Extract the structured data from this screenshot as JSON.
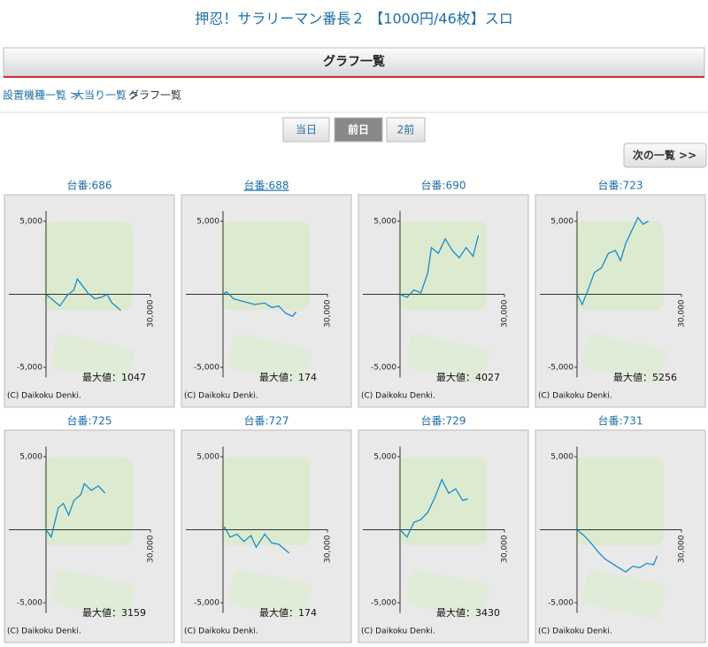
{
  "header": {
    "title": "押忍！サラリーマン番長２ 【1000円/46枚】スロ",
    "bar_title": "グラフ一覧"
  },
  "breadcrumb": [
    "設置機種一覧 >",
    "大当り一覧 >",
    "グラフ一覧"
  ],
  "tabs": [
    "当日",
    "前日",
    "2前"
  ],
  "active_tab": 1,
  "next_button": "次の一覧 >>",
  "cards": [
    {
      "label": "台番:686",
      "underline": false,
      "max_label": "最大値：1047",
      "copyright": "(C) Daikoku Denki.",
      "chart": {
        "type": "line",
        "color": "#1a8ccc",
        "xlim": [
          0,
          30000
        ],
        "ylim": [
          -6000,
          6000
        ],
        "yticks": [
          {
            "value": 5000,
            "label": "5,000"
          },
          {
            "value": -5000,
            "label": "-5,000"
          }
        ],
        "xticks": [
          {
            "value": 30000,
            "label": "30,000"
          }
        ],
        "x": [
          0,
          2000,
          4000,
          6000,
          8000,
          9000,
          12000,
          14000,
          16000,
          17500,
          19000,
          21500
        ],
        "values": [
          0,
          -400,
          -800,
          -100,
          300,
          1047,
          100,
          -300,
          -200,
          0,
          -600,
          -1100
        ]
      }
    },
    {
      "label": "台番:688",
      "underline": true,
      "max_label": "最大値：174",
      "copyright": "(C) Daikoku Denki.",
      "chart": {
        "type": "line",
        "color": "#1a8ccc",
        "xlim": [
          0,
          30000
        ],
        "ylim": [
          -6000,
          6000
        ],
        "yticks": [
          {
            "value": 5000,
            "label": "5,000"
          },
          {
            "value": -5000,
            "label": "-5,000"
          }
        ],
        "xticks": [
          {
            "value": 30000,
            "label": "30,000"
          }
        ],
        "x": [
          0,
          1000,
          3000,
          6000,
          9000,
          12000,
          14000,
          16000,
          18000,
          20000,
          21000
        ],
        "values": [
          0,
          174,
          -300,
          -500,
          -700,
          -600,
          -900,
          -800,
          -1300,
          -1500,
          -1200
        ]
      }
    },
    {
      "label": "台番:690",
      "underline": false,
      "max_label": "最大値：4027",
      "copyright": "(C) Daikoku Denki.",
      "chart": {
        "type": "line",
        "color": "#1a8ccc",
        "xlim": [
          0,
          30000
        ],
        "ylim": [
          -6000,
          6000
        ],
        "yticks": [
          {
            "value": 5000,
            "label": "5,000"
          },
          {
            "value": -5000,
            "label": "-5,000"
          }
        ],
        "xticks": [
          {
            "value": 30000,
            "label": "30,000"
          }
        ],
        "x": [
          0,
          2000,
          4000,
          6000,
          8000,
          9000,
          11000,
          13000,
          15000,
          17000,
          19000,
          21000,
          22500
        ],
        "values": [
          0,
          -200,
          300,
          100,
          1500,
          3200,
          2800,
          3800,
          3000,
          2500,
          3200,
          2600,
          4027
        ]
      }
    },
    {
      "label": "台番:723",
      "underline": false,
      "max_label": "最大値：5256",
      "copyright": "(C) Daikoku Denki.",
      "chart": {
        "type": "line",
        "color": "#1a8ccc",
        "xlim": [
          0,
          30000
        ],
        "ylim": [
          -6000,
          6000
        ],
        "yticks": [
          {
            "value": 5000,
            "label": "5,000"
          },
          {
            "value": -5000,
            "label": "-5,000"
          }
        ],
        "xticks": [
          {
            "value": 30000,
            "label": "30,000"
          }
        ],
        "x": [
          0,
          1500,
          3000,
          5000,
          7000,
          9000,
          11000,
          12500,
          14000,
          16000,
          17500,
          19000,
          20500
        ],
        "values": [
          0,
          -700,
          200,
          1500,
          1800,
          2800,
          3000,
          2300,
          3500,
          4500,
          5256,
          4800,
          5000
        ]
      }
    },
    {
      "label": "台番:725",
      "underline": false,
      "max_label": "最大値：3159",
      "copyright": "(C) Daikoku Denki.",
      "chart": {
        "type": "line",
        "color": "#1a8ccc",
        "xlim": [
          0,
          30000
        ],
        "ylim": [
          -6000,
          6000
        ],
        "yticks": [
          {
            "value": 5000,
            "label": "5,000"
          },
          {
            "value": -5000,
            "label": "-5,000"
          }
        ],
        "xticks": [
          {
            "value": 30000,
            "label": "30,000"
          }
        ],
        "x": [
          0,
          1500,
          3500,
          5000,
          6500,
          8000,
          10000,
          11000,
          13000,
          15000,
          17000
        ],
        "values": [
          0,
          -500,
          1500,
          1800,
          1000,
          2000,
          2400,
          3159,
          2700,
          3000,
          2500
        ]
      }
    },
    {
      "label": "台番:727",
      "underline": false,
      "max_label": "最大値：174",
      "copyright": "(C) Daikoku Denki.",
      "chart": {
        "type": "line",
        "color": "#1a8ccc",
        "xlim": [
          0,
          30000
        ],
        "ylim": [
          -6000,
          6000
        ],
        "yticks": [
          {
            "value": 5000,
            "label": "5,000"
          },
          {
            "value": -5000,
            "label": "-5,000"
          }
        ],
        "xticks": [
          {
            "value": 30000,
            "label": "30,000"
          }
        ],
        "x": [
          0,
          500,
          2000,
          4000,
          6000,
          8000,
          9500,
          12000,
          14000,
          16000,
          19000
        ],
        "values": [
          0,
          174,
          -500,
          -300,
          -800,
          -400,
          -1200,
          -300,
          -900,
          -1000,
          -1600
        ]
      }
    },
    {
      "label": "台番:729",
      "underline": false,
      "max_label": "最大値：3430",
      "copyright": "(C) Daikoku Denki.",
      "chart": {
        "type": "line",
        "color": "#1a8ccc",
        "xlim": [
          0,
          30000
        ],
        "ylim": [
          -6000,
          6000
        ],
        "yticks": [
          {
            "value": 5000,
            "label": "5,000"
          },
          {
            "value": -5000,
            "label": "-5,000"
          }
        ],
        "xticks": [
          {
            "value": 30000,
            "label": "30,000"
          }
        ],
        "x": [
          0,
          2000,
          4000,
          6000,
          8000,
          10000,
          12000,
          14000,
          16000,
          18000,
          19500
        ],
        "values": [
          0,
          -500,
          500,
          700,
          1200,
          2200,
          3430,
          2500,
          2800,
          2000,
          2100
        ]
      }
    },
    {
      "label": "台番:731",
      "underline": false,
      "copyright": "(C) Daikoku Denki.",
      "chart": {
        "type": "line",
        "color": "#1a8ccc",
        "xlim": [
          0,
          30000
        ],
        "ylim": [
          -6000,
          6000
        ],
        "yticks": [
          {
            "value": 5000,
            "label": "5,000"
          },
          {
            "value": -5000,
            "label": "-5,000"
          }
        ],
        "xticks": [
          {
            "value": 30000,
            "label": "30,000"
          }
        ],
        "x": [
          0,
          2000,
          4000,
          6000,
          8000,
          10000,
          12000,
          14000,
          16000,
          18000,
          20000,
          22000,
          23000
        ],
        "values": [
          0,
          -400,
          -900,
          -1500,
          -2000,
          -2300,
          -2600,
          -2900,
          -2500,
          -2600,
          -2300,
          -2400,
          -1800
        ]
      }
    }
  ]
}
